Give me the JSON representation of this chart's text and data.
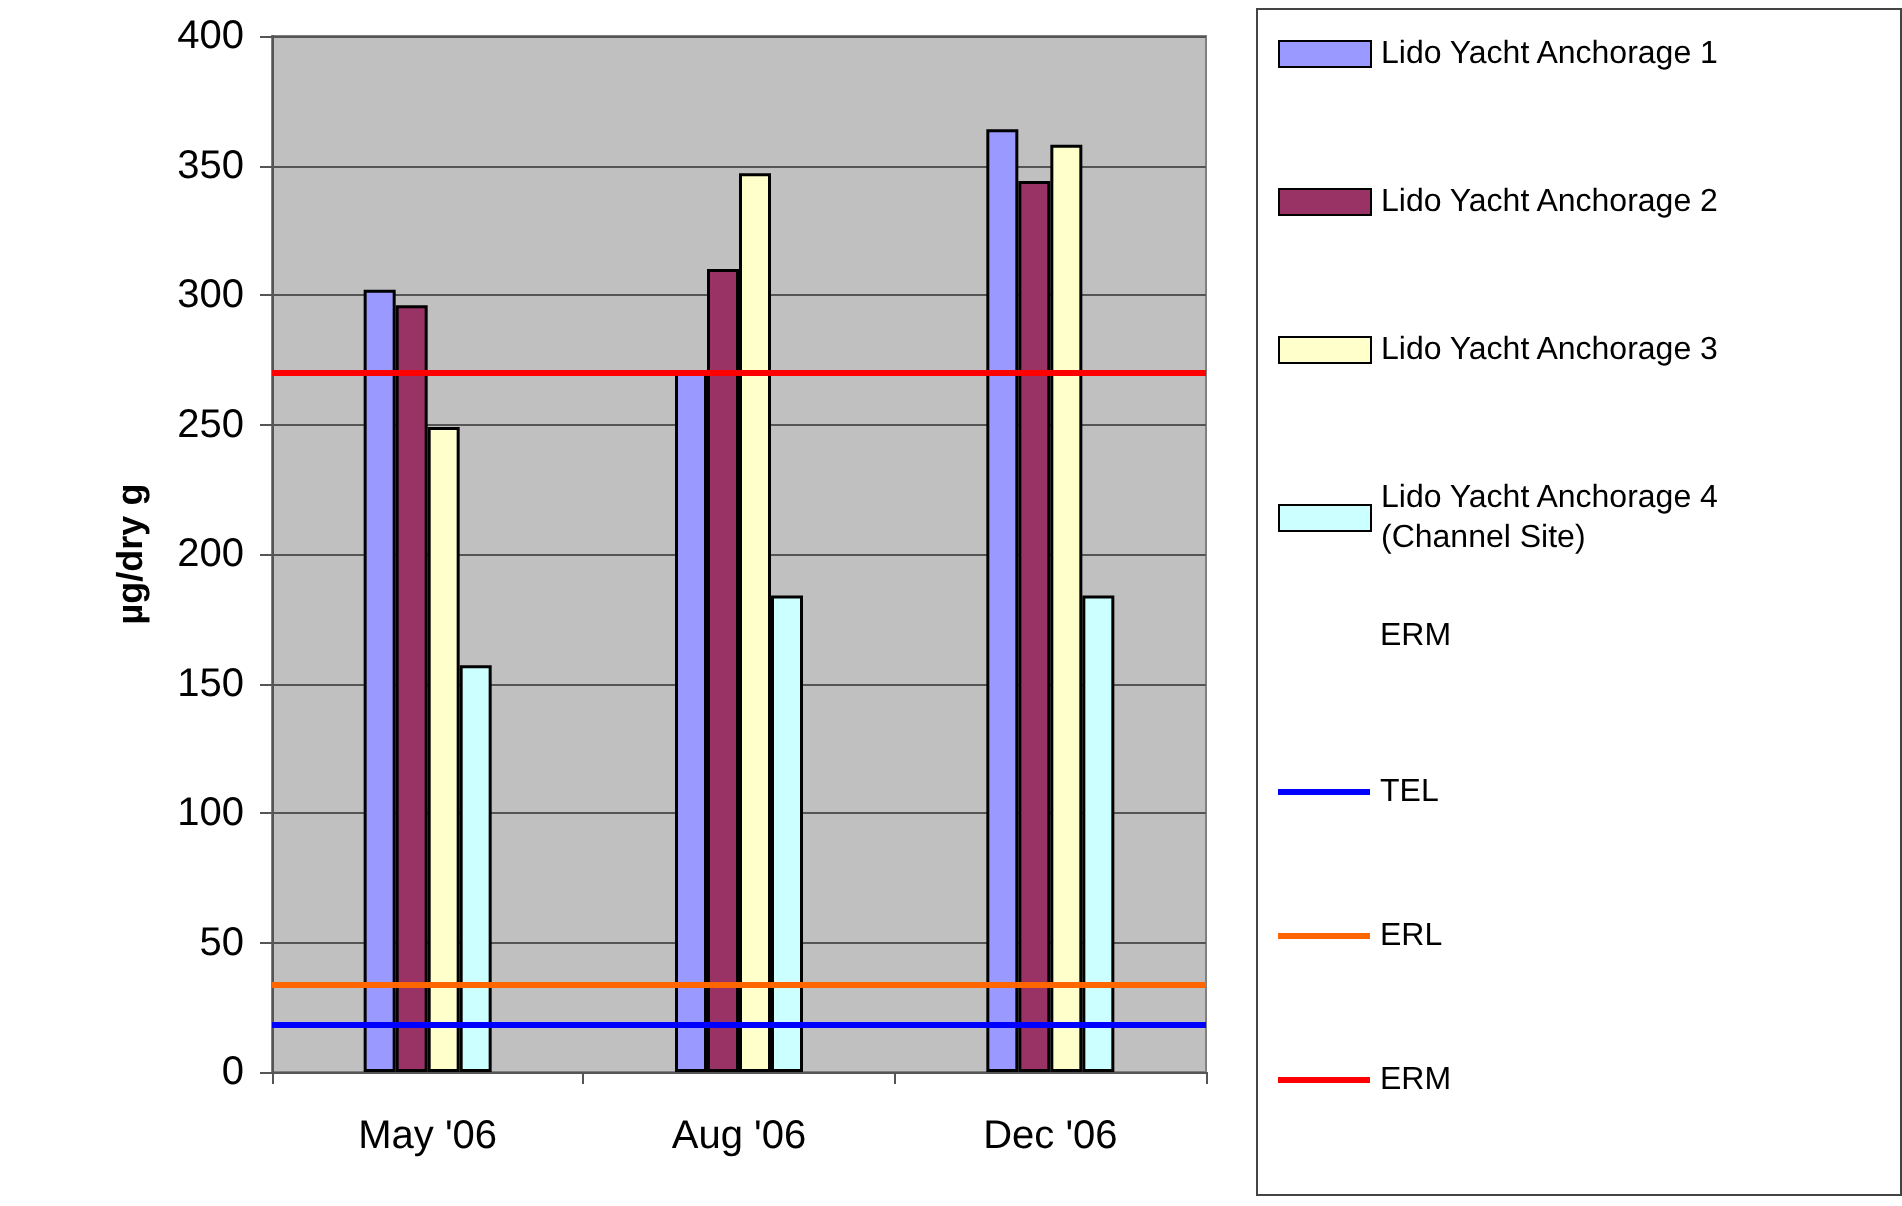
{
  "chart_data": {
    "type": "bar",
    "ylabel": "µg/dry g",
    "categories": [
      "May '06",
      "Aug '06",
      "Dec '06"
    ],
    "series": [
      {
        "name": "Lido Yacht Anchorage 1",
        "color": "#9999ff",
        "values": [
          302,
          270,
          364
        ]
      },
      {
        "name": "Lido Yacht Anchorage 2",
        "color": "#993366",
        "values": [
          296,
          310,
          344
        ]
      },
      {
        "name": "Lido Yacht Anchorage 3",
        "color": "#ffffcc",
        "values": [
          249,
          347,
          358
        ]
      },
      {
        "name": "Lido Yacht Anchorage 4 (Channel Site)",
        "color": "#ccffff",
        "values": [
          157,
          184,
          184
        ]
      }
    ],
    "ref_lines": [
      {
        "axis": "y",
        "value": 18.7,
        "label": "TEL",
        "color": "#0000ff"
      },
      {
        "axis": "y",
        "value": 34,
        "label": "ERL",
        "color": "#ff6600"
      },
      {
        "axis": "y",
        "value": 270,
        "label": "ERM",
        "color": "#ff0000"
      }
    ],
    "annotations": [
      "ERM"
    ],
    "ylim": [
      0,
      400
    ],
    "yticks": [
      0,
      50,
      100,
      150,
      200,
      250,
      300,
      350,
      400
    ],
    "grid": "y",
    "legend": "right"
  }
}
